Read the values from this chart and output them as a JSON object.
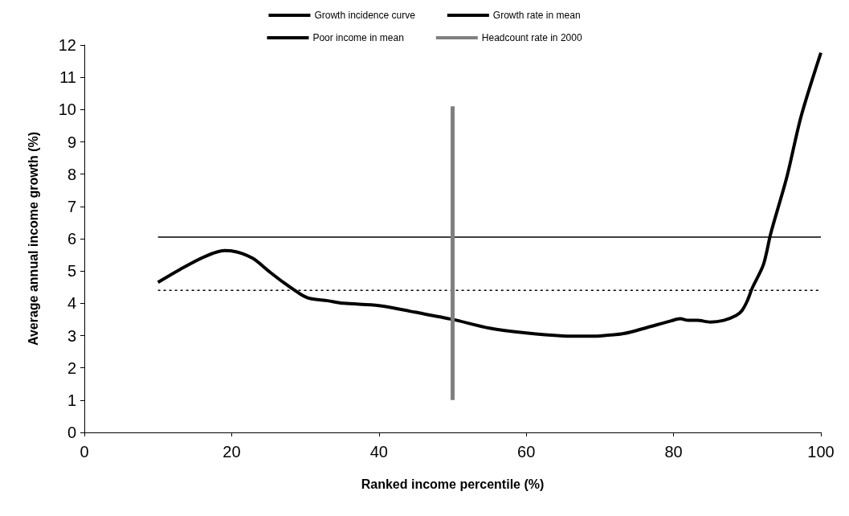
{
  "chart_data": {
    "type": "line",
    "xlabel": "Ranked income percentile (%)",
    "ylabel": "Average annual income growth (%)",
    "xlim": [
      0,
      100
    ],
    "xticks": [
      0,
      20,
      40,
      60,
      80,
      100
    ],
    "ylim": [
      0,
      12
    ],
    "yticks": [
      0,
      1,
      2,
      3,
      4,
      5,
      6,
      7,
      8,
      9,
      10,
      11,
      12
    ],
    "grid": false,
    "legend": "top",
    "marker": "none",
    "series": [
      {
        "name": "Growth incidence curve",
        "color": "#000000",
        "line_style": "solid",
        "x": [
          10,
          13,
          16.4,
          19,
          20,
          22.8,
          25,
          27,
          29.3,
          30.6,
          33,
          35.2,
          40,
          45,
          50,
          55,
          60,
          65,
          68,
          70,
          73.2,
          76.4,
          79.6,
          80.9,
          82,
          83.2,
          85,
          86.8,
          88.5,
          89.3,
          90,
          90.7,
          92.2,
          93.2,
          95.4,
          97.3,
          100
        ],
        "values": [
          4.65,
          5.05,
          5.45,
          5.63,
          5.62,
          5.4,
          5.0,
          4.65,
          4.29,
          4.15,
          4.08,
          4.0,
          3.93,
          3.72,
          3.5,
          3.23,
          3.08,
          2.99,
          2.98,
          2.99,
          3.06,
          3.25,
          3.45,
          3.52,
          3.47,
          3.47,
          3.42,
          3.47,
          3.62,
          3.78,
          4.07,
          4.48,
          5.2,
          6.17,
          7.93,
          9.78,
          11.76
        ]
      },
      {
        "name": "Growth rate in mean",
        "color": "#000000",
        "line_style": "solid",
        "x": [
          10,
          100
        ],
        "values": [
          6.05,
          6.05
        ]
      },
      {
        "name": "Poor income in mean",
        "color": "#000000",
        "line_style": "dotted",
        "x": [
          10,
          100
        ],
        "values": [
          4.4,
          4.4
        ]
      },
      {
        "name": "Headcount rate in 2000",
        "color": "#808080",
        "line_style": "solid",
        "x": [
          50,
          50
        ],
        "values": [
          1,
          10.1
        ]
      }
    ]
  }
}
